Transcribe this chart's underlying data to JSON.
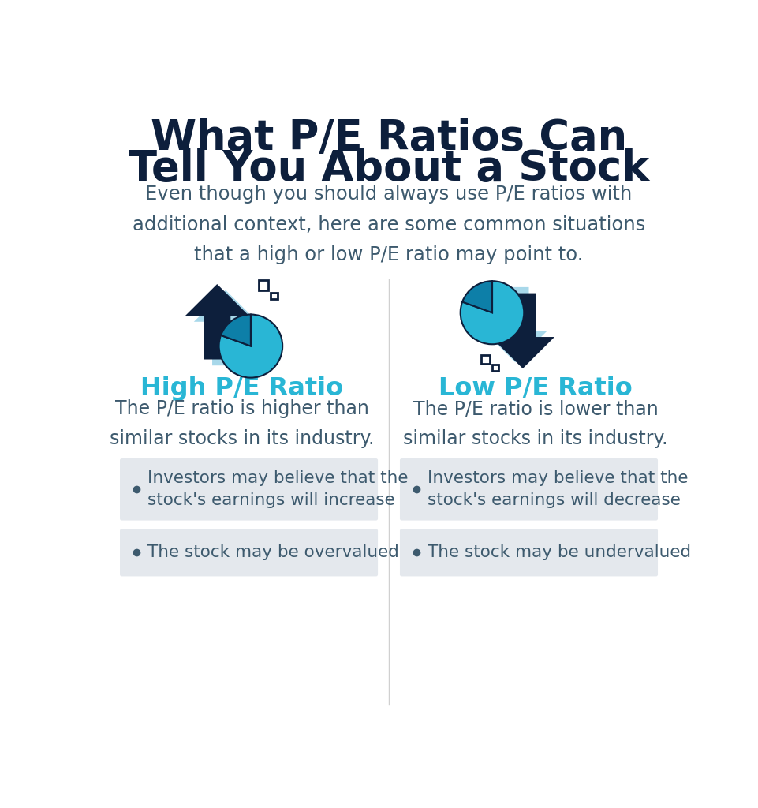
{
  "title_line1": "What P/E Ratios Can",
  "title_line2": "Tell You About a Stock",
  "subtitle": "Even though you should always use P/E ratios with\nadditional context, here are some common situations\nthat a high or low P/E ratio may point to.",
  "left_heading": "High P/E Ratio",
  "right_heading": "Low P/E Ratio",
  "left_desc": "The P/E ratio is higher than\nsimilar stocks in its industry.",
  "right_desc": "The P/E ratio is lower than\nsimilar stocks in its industry.",
  "left_bullet1": "Investors may believe that the\nstock's earnings will increase",
  "left_bullet2": "The stock may be overvalued",
  "right_bullet1": "Investors may believe that the\nstock's earnings will decrease",
  "right_bullet2": "The stock may be undervalued",
  "bg_color": "#ffffff",
  "title_color": "#0d1f3c",
  "subtitle_color": "#3d5a6e",
  "heading_color": "#29b6d5",
  "body_color": "#3d5a6e",
  "bullet_bg_color": "#e4e8ed",
  "arrow_dark_color": "#0d1f3c",
  "pie_light_color": "#29b6d5",
  "pie_dark_color": "#0d7fa8",
  "light_blue_fill": "#a8d8ea",
  "divider_color": "#d0d0d0"
}
